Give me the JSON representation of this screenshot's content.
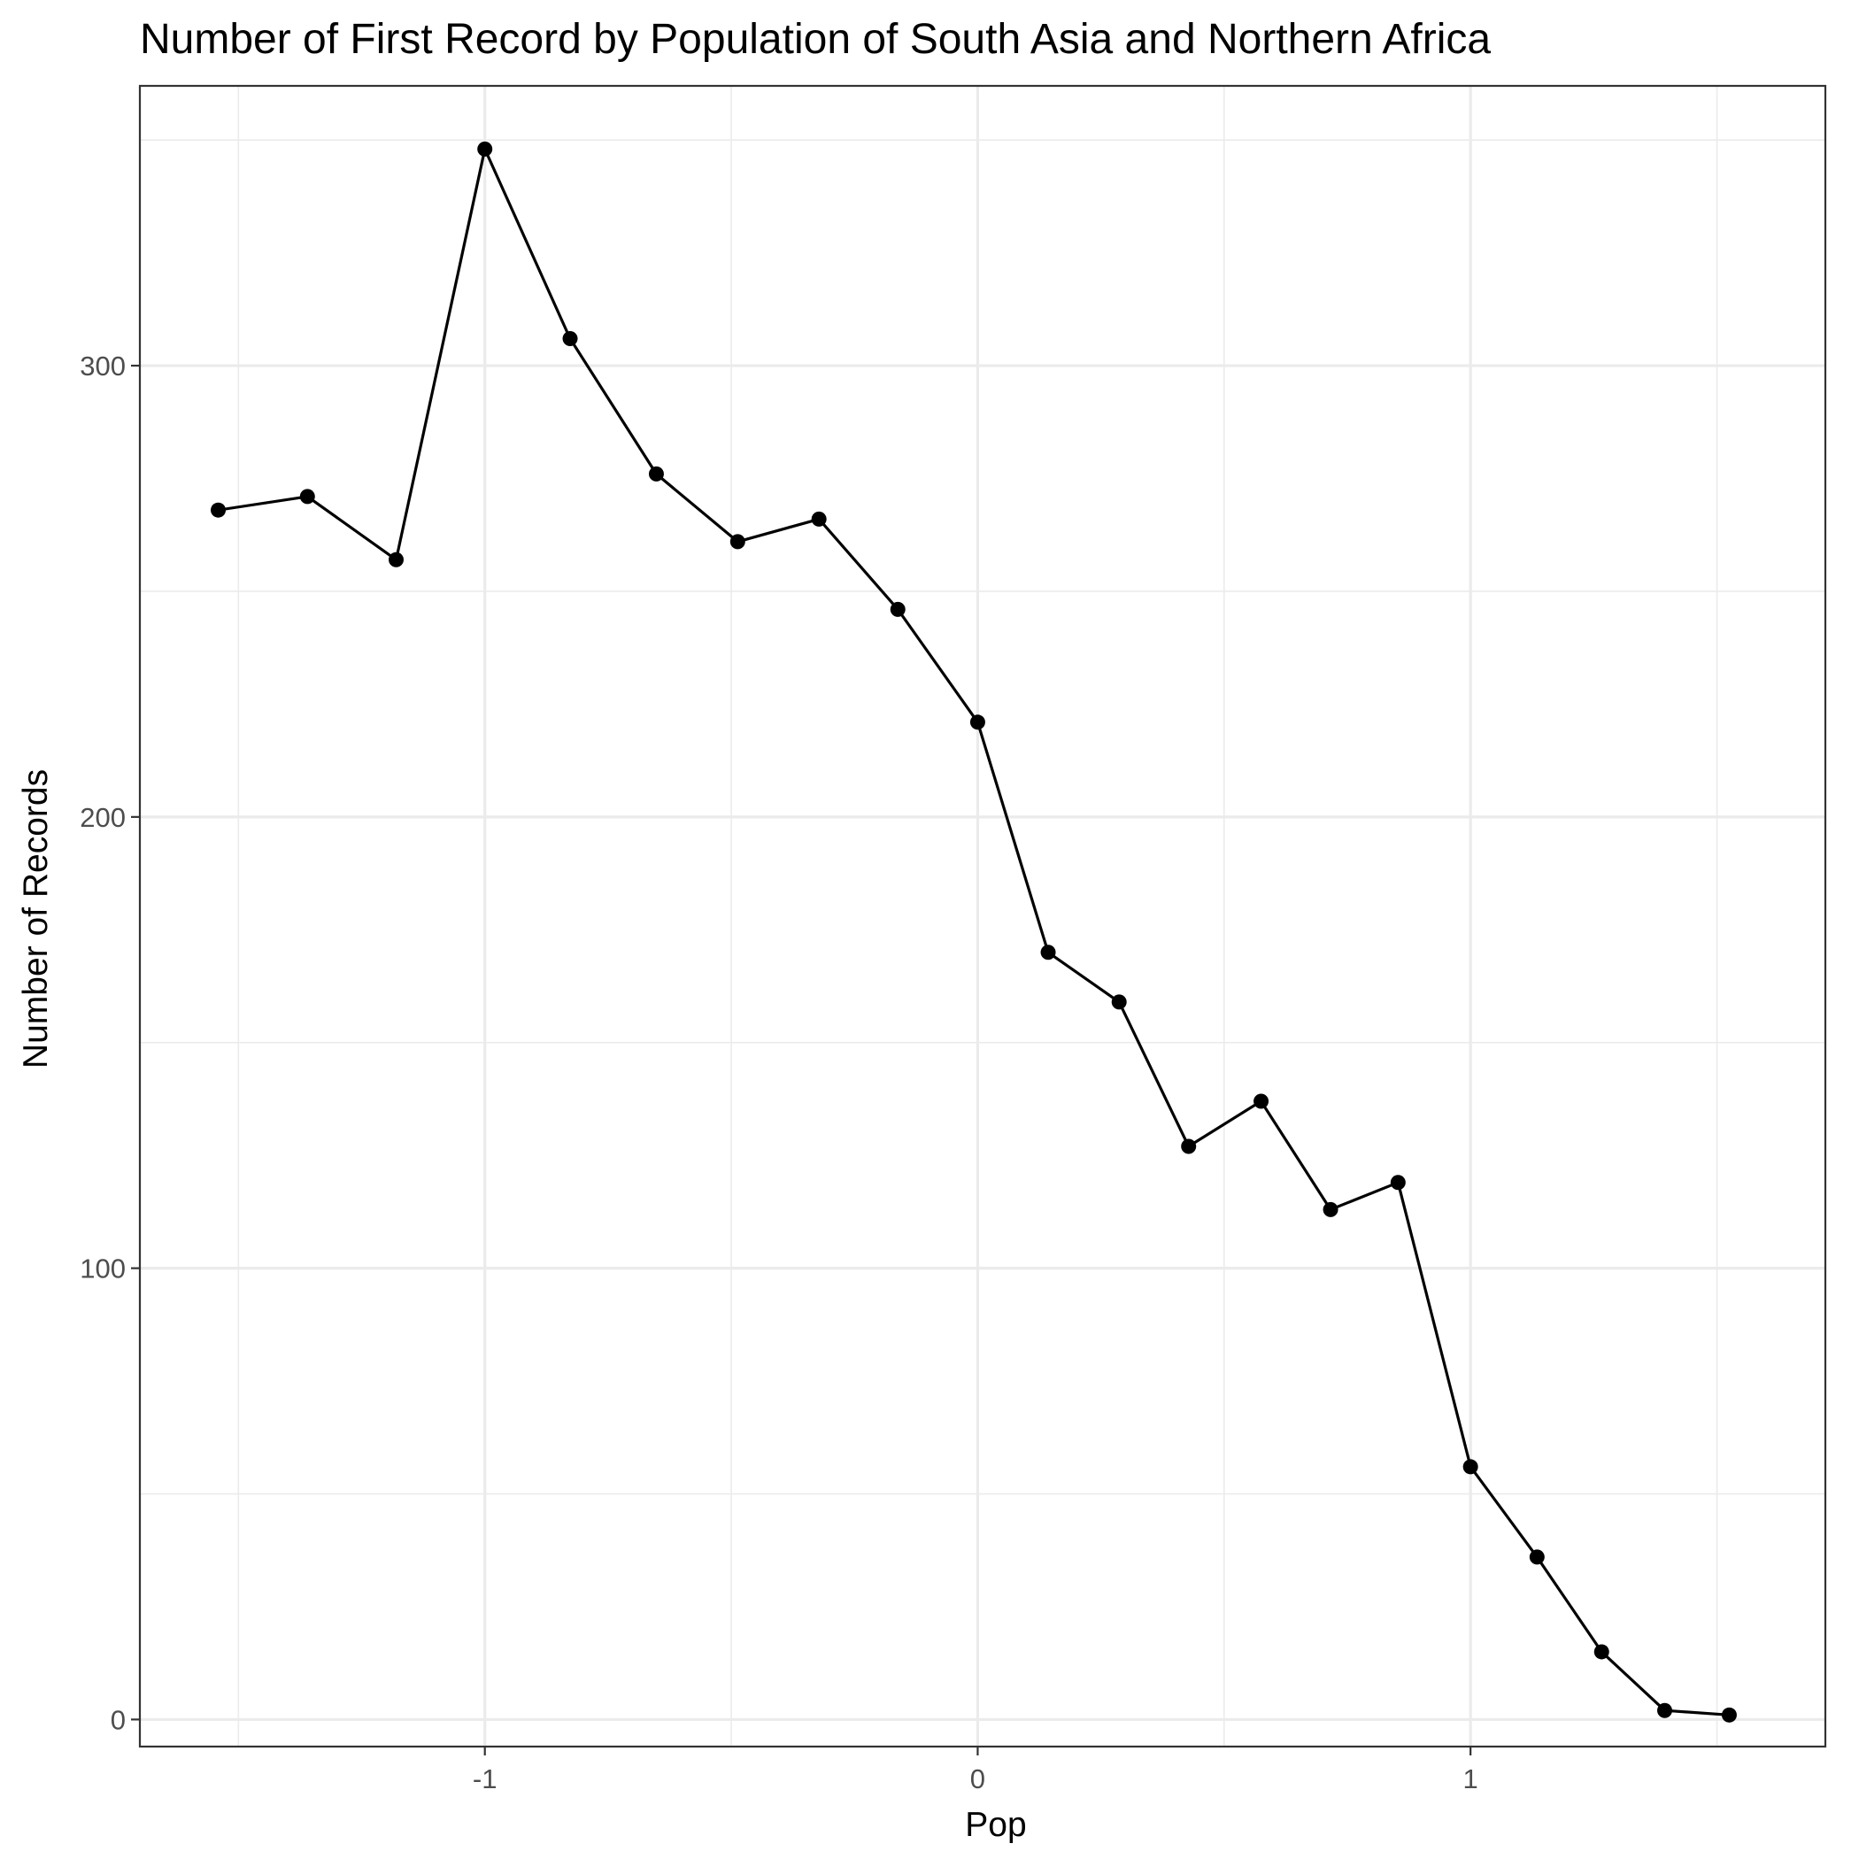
{
  "chart_data": {
    "type": "line",
    "title": "Number of First Record by Population of South Asia and Northern Africa",
    "xlabel": "Pop",
    "ylabel": "Number of Records",
    "xlim": [
      -1.7,
      1.72
    ],
    "ylim": [
      -6,
      362
    ],
    "x_major_ticks": [
      -1,
      0,
      1
    ],
    "x_major_tick_labels": [
      "-1",
      "0",
      "1"
    ],
    "x_minor_ticks": [
      -1.5,
      -0.5,
      0.5,
      1.5
    ],
    "y_major_ticks": [
      0,
      100,
      200,
      300
    ],
    "y_major_tick_labels": [
      "0",
      "100",
      "200",
      "300"
    ],
    "y_minor_ticks": [
      50,
      150,
      250,
      350
    ],
    "grid": true,
    "legend": "none",
    "line_color": "#000000",
    "point_color": "#000000",
    "series": [
      {
        "x": [
          -1.541,
          -1.36,
          -1.18,
          -1.0,
          -0.827,
          -0.652,
          -0.487,
          -0.322,
          -0.162,
          0.0,
          0.143,
          0.287,
          0.428,
          0.575,
          0.716,
          0.853,
          1.0,
          1.135,
          1.266,
          1.394,
          1.525
        ],
        "y": [
          268,
          271,
          257,
          348,
          306,
          276,
          261,
          266,
          246,
          221,
          170,
          159,
          127,
          137,
          113,
          119,
          56,
          36,
          15,
          2,
          1
        ]
      }
    ]
  }
}
